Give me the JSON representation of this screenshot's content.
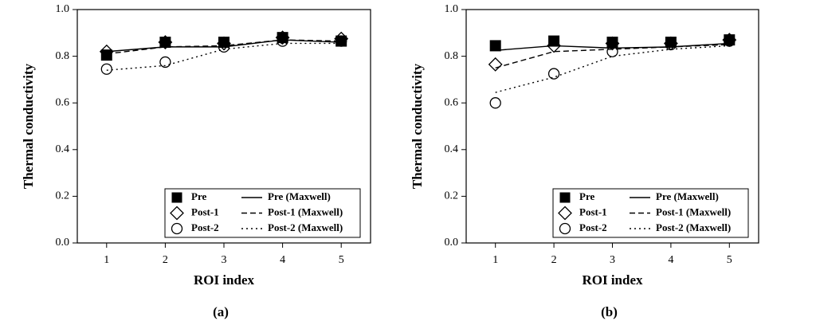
{
  "chart_data": [
    {
      "type": "line",
      "caption": "(a)",
      "xlabel": "ROI index",
      "ylabel": "Thermal conductivity",
      "x": [
        1,
        2,
        3,
        4,
        5
      ],
      "xlim": [
        0.5,
        5.5
      ],
      "xticks": [
        1,
        2,
        3,
        4,
        5
      ],
      "ylim": [
        0,
        1
      ],
      "yticks": [
        {
          "value": 0,
          "label": "0.0"
        },
        0.2,
        0.4,
        0.6,
        0.8,
        {
          "value": 1,
          "label": "1.0"
        }
      ],
      "legend": "lower right",
      "series": [
        {
          "name": "Pre",
          "color": "#000000",
          "marker": "square",
          "values": [
            0.805,
            0.86,
            0.86,
            0.88,
            0.865
          ]
        },
        {
          "name": "Post-1",
          "color": "#000000",
          "marker": "diamond",
          "values": [
            0.82,
            0.86,
            0.855,
            0.88,
            0.875
          ]
        },
        {
          "name": "Post-2",
          "color": "#000000",
          "marker": "circle",
          "values": [
            0.745,
            0.775,
            0.84,
            0.865,
            0.865
          ]
        },
        {
          "name": "Pre (Maxwell)",
          "color": "#000000",
          "linestyle": "solid",
          "values": [
            0.82,
            0.84,
            0.84,
            0.87,
            0.86
          ]
        },
        {
          "name": "Post-1 (Maxwell)",
          "color": "#000000",
          "linestyle": "dashed",
          "values": [
            0.81,
            0.84,
            0.845,
            0.87,
            0.865
          ]
        },
        {
          "name": "Post-2 (Maxwell)",
          "color": "#000000",
          "linestyle": "dotted",
          "values": [
            0.74,
            0.76,
            0.83,
            0.855,
            0.855
          ]
        }
      ]
    },
    {
      "type": "line",
      "caption": "(b)",
      "xlabel": "ROI index",
      "ylabel": "Thermal conductivity",
      "x": [
        1,
        2,
        3,
        4,
        5
      ],
      "xlim": [
        0.5,
        5.5
      ],
      "xticks": [
        1,
        2,
        3,
        4,
        5
      ],
      "ylim": [
        0,
        1
      ],
      "yticks": [
        {
          "value": 0,
          "label": "0.0"
        },
        0.2,
        0.4,
        0.6,
        0.8,
        {
          "value": 1,
          "label": "1.0"
        }
      ],
      "legend": "lower right",
      "series": [
        {
          "name": "Pre",
          "color": "#000000",
          "marker": "square",
          "values": [
            0.845,
            0.865,
            0.86,
            0.86,
            0.87
          ]
        },
        {
          "name": "Post-1",
          "color": "#000000",
          "marker": "diamond",
          "values": [
            0.765,
            0.845,
            0.855,
            0.855,
            0.87
          ]
        },
        {
          "name": "Post-2",
          "color": "#000000",
          "marker": "circle",
          "values": [
            0.6,
            0.725,
            0.82,
            0.85,
            0.865
          ]
        },
        {
          "name": "Pre (Maxwell)",
          "color": "#000000",
          "linestyle": "solid",
          "values": [
            0.825,
            0.845,
            0.835,
            0.84,
            0.855
          ]
        },
        {
          "name": "Post-1 (Maxwell)",
          "color": "#000000",
          "linestyle": "dashed",
          "values": [
            0.75,
            0.82,
            0.83,
            0.84,
            0.85
          ]
        },
        {
          "name": "Post-2 (Maxwell)",
          "color": "#000000",
          "linestyle": "dotted",
          "values": [
            0.645,
            0.71,
            0.8,
            0.83,
            0.845
          ]
        }
      ]
    }
  ]
}
